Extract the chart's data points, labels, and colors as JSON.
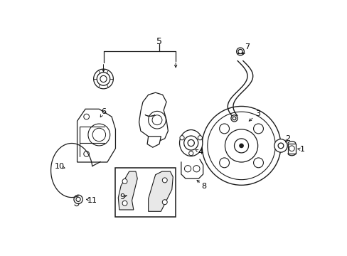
{
  "background_color": "#ffffff",
  "line_color": "#1a1a1a",
  "text_color": "#000000",
  "fig_width": 4.89,
  "fig_height": 3.6,
  "dpi": 100,
  "xlim": [
    0,
    489
  ],
  "ylim": [
    0,
    360
  ]
}
